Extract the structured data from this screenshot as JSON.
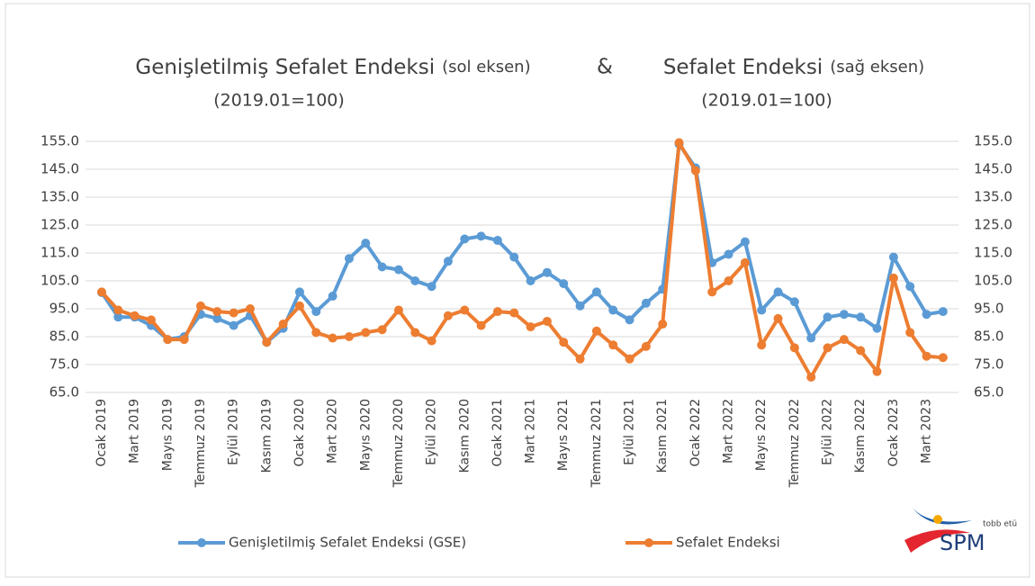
{
  "chart_data": {
    "type": "line",
    "title_left": "Genişletilmiş Sefalet Endeksi",
    "title_left_note": "(sol eksen)",
    "title_joiner": "&",
    "title_right": "Sefalet Endeksi",
    "title_right_note": "(sağ eksen)",
    "subtitle_left": "(2019.01=100)",
    "subtitle_right": "(2019.01=100)",
    "categories": [
      "Ocak 2019",
      null,
      "Mart 2019",
      null,
      "Mayıs 2019",
      null,
      "Temmuz 2019",
      null,
      "Eylül 2019",
      null,
      "Kasım 2019",
      null,
      "Ocak 2020",
      null,
      "Mart 2020",
      null,
      "Mayıs 2020",
      null,
      "Temmuz 2020",
      null,
      "Eylül 2020",
      null,
      "Kasım 2020",
      null,
      "Ocak 2021",
      null,
      "Mart 2021",
      null,
      "Mayıs 2021",
      null,
      "Temmuz 2021",
      null,
      "Eylül 2021",
      null,
      "Kasım 2021",
      null,
      "Ocak 2022",
      null,
      "Mart 2022",
      null,
      "Mayıs 2022",
      null,
      "Temmuz 2022",
      null,
      "Eylül 2022",
      null,
      "Kasım 2022",
      null,
      "Ocak 2023",
      null,
      "Mart 2023",
      null
    ],
    "series": [
      {
        "name": "Genişletilmiş Sefalet Endeksi (GSE)",
        "color": "#5b9bd5",
        "axis": "y",
        "values": [
          100.8,
          92,
          92,
          89,
          84,
          85,
          93,
          91.5,
          89,
          92.5,
          83,
          88,
          101,
          94,
          99.5,
          113,
          118.5,
          110,
          109,
          105,
          103,
          112,
          120,
          121,
          119.5,
          113.5,
          105,
          108,
          104,
          96,
          101,
          94.5,
          91,
          97,
          102,
          154,
          145.5,
          111.5,
          114.5,
          119,
          94.5,
          101,
          97.5,
          84.5,
          92,
          93,
          92,
          88,
          113.5,
          103,
          93,
          94
        ]
      },
      {
        "name": "Sefalet Endeksi",
        "color": "#ed7d31",
        "axis": "y2",
        "values": [
          101,
          94.5,
          92.5,
          91,
          84,
          84,
          96,
          94,
          93.5,
          95,
          83,
          89.5,
          96,
          86.5,
          84.5,
          85,
          86.5,
          87.5,
          94.5,
          86.5,
          83.5,
          92.5,
          94.5,
          89,
          94,
          93.5,
          88.5,
          90.5,
          83,
          77,
          87,
          82,
          77,
          81.5,
          89.5,
          154.5,
          144.5,
          101,
          105,
          111.5,
          82,
          91.5,
          81,
          70.5,
          81,
          84,
          80,
          72.5,
          106,
          86.5,
          78,
          77.5
        ]
      }
    ],
    "ylim": [
      65,
      155
    ],
    "yticks": [
      {
        "value": 65,
        "label": "65.0"
      },
      {
        "value": 75,
        "label": "75.0"
      },
      {
        "value": 85,
        "label": "85.0"
      },
      {
        "value": 95,
        "label": "95.0"
      },
      {
        "value": 105,
        "label": "105.0"
      },
      {
        "value": 115,
        "label": "115.0"
      },
      {
        "value": 125,
        "label": "125.0"
      },
      {
        "value": 135,
        "label": "135.0"
      },
      {
        "value": 145,
        "label": "145.0"
      },
      {
        "value": 155,
        "label": "155.0"
      }
    ],
    "y2lim": [
      65,
      155
    ],
    "y2ticks": [
      {
        "value": 65,
        "label": "65.0"
      },
      {
        "value": 75,
        "label": "75.0"
      },
      {
        "value": 85,
        "label": "85.0"
      },
      {
        "value": 95,
        "label": "95.0"
      },
      {
        "value": 105,
        "label": "105.0"
      },
      {
        "value": 115,
        "label": "115.0"
      },
      {
        "value": 125,
        "label": "125.0"
      },
      {
        "value": 135,
        "label": "135.0"
      },
      {
        "value": 145,
        "label": "145.0"
      },
      {
        "value": 155,
        "label": "155.0"
      }
    ],
    "grid": true,
    "legend": "bottom"
  },
  "logo": {
    "tagline": "tobb etü",
    "name": "SPM"
  }
}
